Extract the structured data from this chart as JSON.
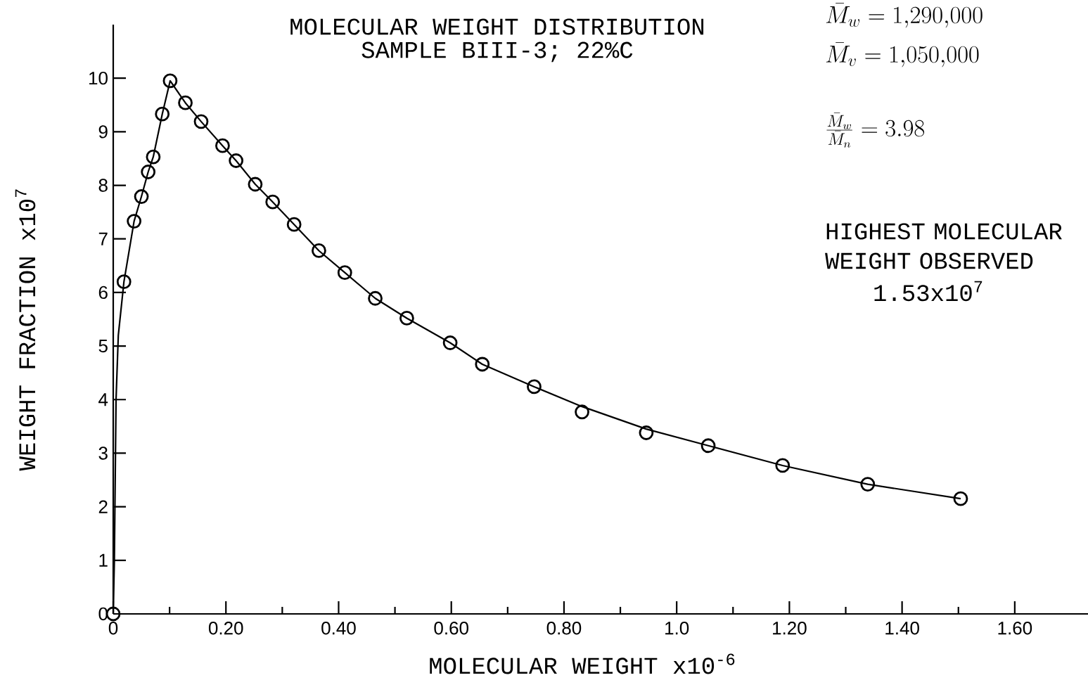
{
  "chart_data": {
    "type": "scatter",
    "title": "MOLECULAR WEIGHT DISTRIBUTION",
    "subtitle": "SAMPLE BIII-3; 22%C",
    "xlabel": "MOLECULAR WEIGHT x10$^{-6}$",
    "ylabel": "WEIGHT FRACTION x10$^{7}$",
    "annotations": [
      "\\bar{M}_w = 1{,}290{,}000",
      "\\bar{M}_v = 1{,}050{,}000",
      "\\frac{\\bar{M}_w}{\\bar{M}_n} = 3.98",
      "HIGHEST MOLECULAR WEIGHT OBSERVED",
      "1.53x10$^{7}$"
    ],
    "xlim": [
      0,
      1.73
    ],
    "ylim": [
      0,
      11
    ],
    "xticks": [
      0,
      {
        "value": 0.1,
        "label": null
      },
      {
        "value": 0.2,
        "label": "0.20"
      },
      {
        "value": 0.3,
        "label": null
      },
      {
        "value": 0.4,
        "label": "0.40"
      },
      {
        "value": 0.5,
        "label": null
      },
      {
        "value": 0.6,
        "label": "0.60"
      },
      {
        "value": 0.7,
        "label": null
      },
      {
        "value": 0.8,
        "label": "0.80"
      },
      {
        "value": 0.9,
        "label": null
      },
      {
        "value": 1.0,
        "label": "1.0"
      },
      {
        "value": 1.1,
        "label": null
      },
      {
        "value": 1.2,
        "label": "1.20"
      },
      {
        "value": 1.3,
        "label": null
      },
      {
        "value": 1.4,
        "label": "1.40"
      },
      {
        "value": 1.5,
        "label": null
      },
      {
        "value": 1.6,
        "label": "1.60"
      }
    ],
    "yticks": [
      0,
      1,
      2,
      3,
      4,
      5,
      6,
      7,
      8,
      9,
      10
    ],
    "series": [
      {
        "marker": "circle",
        "color": "#000000",
        "x": [
          0,
          0.019,
          0.037,
          0.05,
          0.062,
          0.071,
          0.087,
          0.101,
          0.128,
          0.156,
          0.194,
          0.218,
          0.252,
          0.283,
          0.321,
          0.365,
          0.411,
          0.465,
          0.521,
          0.598,
          0.655,
          0.747,
          0.832,
          0.946,
          1.056,
          1.188,
          1.339,
          1.504
        ],
        "values": [
          0,
          6.2,
          7.33,
          7.79,
          8.25,
          8.53,
          9.33,
          9.95,
          9.54,
          9.19,
          8.74,
          8.46,
          8.02,
          7.69,
          7.27,
          6.78,
          6.37,
          5.89,
          5.52,
          5.06,
          4.66,
          4.24,
          3.77,
          3.38,
          3.14,
          2.77,
          2.42,
          2.15
        ]
      },
      {
        "type": "line",
        "marker": "none",
        "line_style": "solid",
        "color": "#000000",
        "x": [
          0,
          0.002,
          0.005,
          0.009,
          0.019,
          0.037,
          0.05,
          0.062,
          0.071,
          0.087,
          0.101,
          0.128,
          0.156,
          0.194,
          0.218,
          0.252,
          0.283,
          0.321,
          0.365,
          0.411,
          0.465,
          0.521,
          0.598,
          0.655,
          0.747,
          0.832,
          0.946,
          1.056,
          1.188,
          1.339,
          1.504
        ],
        "values": [
          0,
          1,
          4,
          5.2,
          6.2,
          7.33,
          7.79,
          8.25,
          8.53,
          9.33,
          9.95,
          9.54,
          9.19,
          8.74,
          8.46,
          8.02,
          7.69,
          7.27,
          6.78,
          6.37,
          5.89,
          5.52,
          5.06,
          4.66,
          4.24,
          3.87,
          3.45,
          3.14,
          2.77,
          2.42,
          2.15
        ]
      }
    ]
  }
}
